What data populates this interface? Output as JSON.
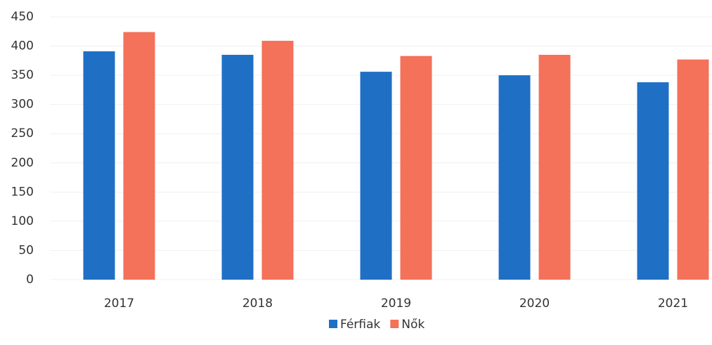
{
  "chart_data": {
    "type": "bar",
    "categories": [
      "2017",
      "2018",
      "2019",
      "2020",
      "2021"
    ],
    "series": [
      {
        "name": "Férfiak",
        "color": "#1f6fc5",
        "values": [
          391,
          385,
          356,
          350,
          338
        ]
      },
      {
        "name": "Nők",
        "color": "#f4715a",
        "values": [
          424,
          409,
          383,
          385,
          377
        ]
      }
    ],
    "ylim": [
      0,
      450
    ],
    "yticks": [
      0,
      50,
      100,
      150,
      200,
      250,
      300,
      350,
      400,
      450
    ],
    "grid": true,
    "legend": "bottom"
  }
}
